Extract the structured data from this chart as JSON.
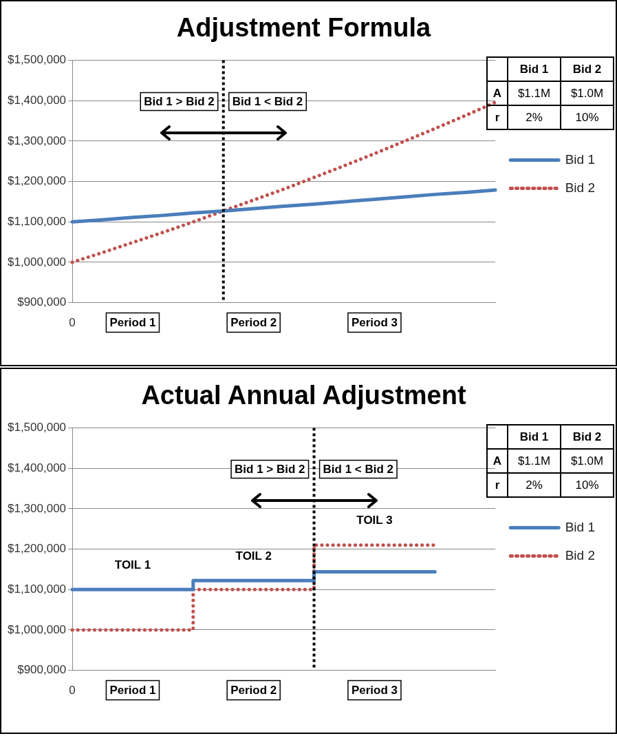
{
  "chart_data": [
    {
      "type": "line",
      "title": "Adjustment Formula",
      "categories": [
        "0",
        null,
        "Period 1",
        null,
        null,
        null,
        "Period 2",
        null,
        null,
        null,
        "Period 3",
        null,
        null,
        null,
        null
      ],
      "ylim": [
        900000,
        1500000
      ],
      "yticks": [
        {
          "value": 900000,
          "label": "$900,000"
        },
        {
          "value": 1000000,
          "label": "$1,000,000"
        },
        {
          "value": 1100000,
          "label": "$1,100,000"
        },
        {
          "value": 1200000,
          "label": "$1,200,000"
        },
        {
          "value": 1300000,
          "label": "$1,300,000"
        },
        {
          "value": 1400000,
          "label": "$1,400,000"
        },
        {
          "value": 1500000,
          "label": "$1,500,000"
        }
      ],
      "grid": "y",
      "legend": "right",
      "series": [
        {
          "name": "Bid 1",
          "color": "#4a7ebb",
          "line_style": "solid",
          "values": [
            1100000,
            1105000,
            1111000,
            1116000,
            1122000,
            1127000,
            1133000,
            1139000,
            1144000,
            1150000,
            1156000,
            1162000,
            1168000,
            1173000,
            1179000
          ]
        },
        {
          "name": "Bid 2",
          "color": "#c0504d",
          "line_style": "dotted",
          "values": [
            1000000,
            1024000,
            1049000,
            1074000,
            1100000,
            1127000,
            1154000,
            1181000,
            1210000,
            1239000,
            1269000,
            1300000,
            1331000,
            1363000,
            1396000
          ]
        }
      ],
      "annotations": [
        "Bid 1 > Bid 2",
        "Bid 1 < Bid 2",
        "Bid 1",
        "Bid 2",
        "A",
        "$1.1M",
        "$1.0M",
        "r",
        "2%",
        "10%"
      ]
    },
    {
      "type": "step",
      "title": "Actual Annual Adjustment",
      "categories": [
        "0",
        null,
        "Period 1",
        null,
        null,
        null,
        "Period 2",
        null,
        null,
        null,
        "Period 3",
        null,
        null,
        null,
        null
      ],
      "ylim": [
        900000,
        1500000
      ],
      "yticks": [
        {
          "value": 900000,
          "label": "$900,000"
        },
        {
          "value": 1000000,
          "label": "$1,000,000"
        },
        {
          "value": 1100000,
          "label": "$1,100,000"
        },
        {
          "value": 1200000,
          "label": "$1,200,000"
        },
        {
          "value": 1300000,
          "label": "$1,300,000"
        },
        {
          "value": 1400000,
          "label": "$1,400,000"
        },
        {
          "value": 1500000,
          "label": "$1,500,000"
        }
      ],
      "grid": "y",
      "legend": "right",
      "series": [
        {
          "name": "Bid 1",
          "color": "#4a7ebb",
          "line_style": "solid",
          "values": [
            1100000,
            1100000,
            1100000,
            1100000,
            1122000,
            1122000,
            1122000,
            1122000,
            1144000,
            1144000,
            1144000,
            1144000,
            1144000,
            null,
            null
          ]
        },
        {
          "name": "Bid 2",
          "color": "#c0504d",
          "line_style": "dotted",
          "values": [
            1000000,
            1000000,
            1000000,
            1000000,
            1100000,
            1100000,
            1100000,
            1100000,
            1210000,
            1210000,
            1210000,
            1210000,
            1210000,
            null,
            null
          ]
        }
      ],
      "annotations": [
        "Bid 1 > Bid 2",
        "Bid 1 < Bid 2",
        "TOIL 1",
        "TOIL 2",
        "TOIL 3",
        "Bid 1",
        "Bid 2",
        "A",
        "$1.1M",
        "$1.0M",
        "r",
        "2%",
        "10%"
      ]
    }
  ]
}
